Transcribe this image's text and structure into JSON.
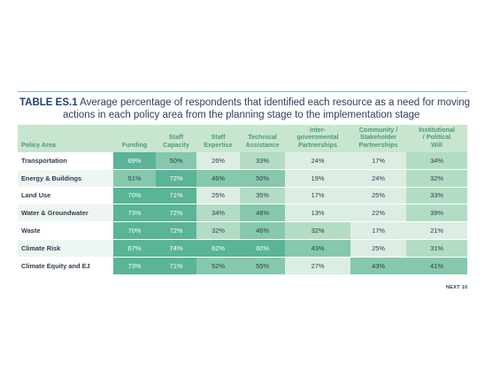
{
  "title": {
    "tag": "TABLE ES.1",
    "line1": "Average percentage of respondents that identified each resource as a need for moving",
    "line2": "actions in each policy area from the planning stage to the implementation stage"
  },
  "columns": [
    {
      "l1": "Policy Area",
      "l2": "",
      "l3": ""
    },
    {
      "l1": "",
      "l2": "",
      "l3": "Funding"
    },
    {
      "l1": "",
      "l2": "Staff",
      "l3": "Capacity"
    },
    {
      "l1": "",
      "l2": "Staff",
      "l3": "Expertise"
    },
    {
      "l1": "",
      "l2": "Technical",
      "l3": "Assistance"
    },
    {
      "l1": "Inter-",
      "l2": "governmental",
      "l3": "Partnerships"
    },
    {
      "l1": "Community /",
      "l2": "Stakeholder",
      "l3": "Partnerships"
    },
    {
      "l1": "Institutional",
      "l2": "/ Political",
      "l3": "Will"
    }
  ],
  "rows": [
    {
      "area": "Transportation",
      "values": [
        "69%",
        "50%",
        "26%",
        "33%",
        "24%",
        "17%",
        "34%"
      ]
    },
    {
      "area": "Energy & Buildings",
      "values": [
        "51%",
        "72%",
        "46%",
        "50%",
        "19%",
        "24%",
        "32%"
      ]
    },
    {
      "area": "Land Use",
      "values": [
        "70%",
        "71%",
        "25%",
        "35%",
        "17%",
        "25%",
        "33%"
      ]
    },
    {
      "area": "Water & Groundwater",
      "values": [
        "73%",
        "72%",
        "34%",
        "46%",
        "13%",
        "22%",
        "39%"
      ]
    },
    {
      "area": "Waste",
      "values": [
        "70%",
        "72%",
        "32%",
        "46%",
        "32%",
        "17%",
        "21%"
      ]
    },
    {
      "area": "Climate Risk",
      "values": [
        "67%",
        "74%",
        "62%",
        "60%",
        "43%",
        "25%",
        "31%"
      ]
    },
    {
      "area": "Climate Equity and EJ",
      "values": [
        "73%",
        "71%",
        "52%",
        "55%",
        "27%",
        "43%",
        "41%"
      ]
    }
  ],
  "colors": {
    "dark": "#5ab497",
    "medium": "#86c8ab",
    "light": "#b3dcc4",
    "pale": "#dceee3",
    "header": "#c8e6cf"
  },
  "footer": "NEXT 10"
}
